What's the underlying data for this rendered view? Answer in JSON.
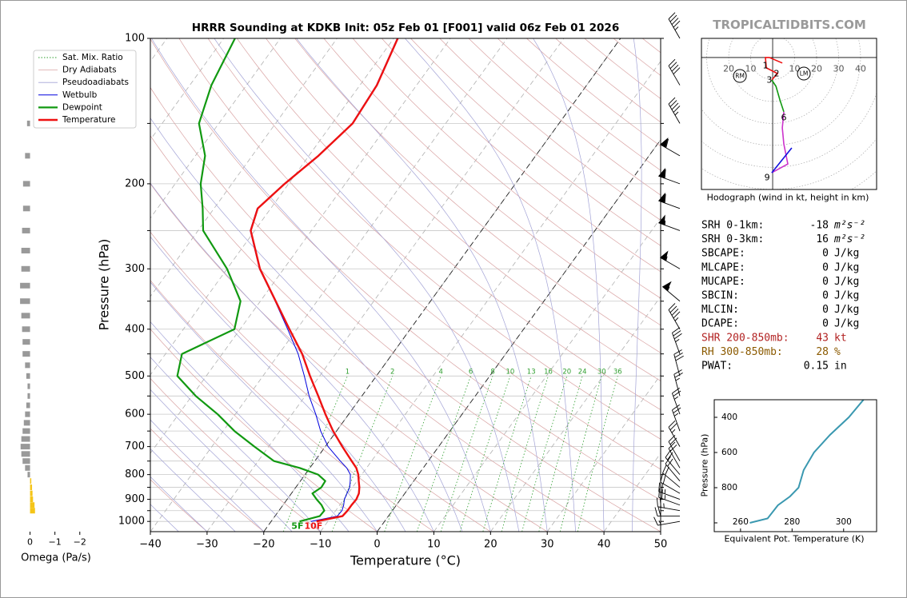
{
  "site": "TROPICALTIDBITS.COM",
  "chart_data": [
    {
      "type": "skewt",
      "title": "HRRR Sounding at KDKB Init: 05z Feb 01 [F001] valid 06z Feb 01 2026",
      "xlabel": "Temperature (°C)",
      "ylabel": "Pressure (hPa)",
      "ylog": true,
      "grid": true,
      "legend": "upper left",
      "xlim": [
        -40,
        50
      ],
      "ylim": [
        1050,
        100
      ],
      "xticks": [
        {
          "value": -40,
          "label": "−40"
        },
        {
          "value": -30,
          "label": "−30"
        },
        {
          "value": -20,
          "label": "−20"
        },
        {
          "value": -10,
          "label": "−10"
        },
        0,
        10,
        20,
        30,
        40,
        50
      ],
      "yticks": [
        100,
        200,
        300,
        400,
        500,
        600,
        700,
        800,
        900,
        1000
      ],
      "yticks_minor": [
        150,
        250,
        350,
        450,
        550,
        650,
        750,
        850,
        950
      ],
      "dashed_isotherms": [
        -20,
        0
      ],
      "reference_lines": [
        {
          "name": "Sat. Mix. Ratio",
          "color": "#2e9e2e",
          "values": [
            1,
            2,
            4,
            6,
            8,
            10,
            13,
            16,
            20,
            24,
            30,
            36
          ]
        },
        {
          "name": "Dry Adiabats",
          "color": "#d9a3a3"
        },
        {
          "name": "Pseudoadiabats",
          "color": "#a3a3d6"
        }
      ],
      "pressure": [
        1000,
        975,
        950,
        925,
        900,
        875,
        850,
        825,
        800,
        775,
        750,
        700,
        650,
        600,
        550,
        500,
        450,
        400,
        350,
        300,
        250,
        225,
        200,
        175,
        150,
        125,
        100
      ],
      "series": [
        {
          "name": "Wetbulb",
          "color": "#0000dd",
          "values": [
            -13.0,
            -9.0,
            -8.9,
            -9.3,
            -9.9,
            -10.2,
            -10.5,
            -11.2,
            -12.0,
            -13.5,
            -15.5,
            -19.5,
            -22.8,
            -25.8,
            -29.3,
            -32.7,
            -36.6,
            -41.6,
            -47.4,
            -54.3,
            -60.8,
            -62.4,
            -60.8,
            -58.4,
            -56.5,
            -57.1,
            -59.4
          ]
        },
        {
          "name": "Dewpoint",
          "color": "#119911",
          "surface_label": "5F",
          "values": [
            -15.0,
            -12.1,
            -12.0,
            -13.2,
            -14.8,
            -16.3,
            -15.5,
            -15.6,
            -17.7,
            -21.8,
            -27.2,
            -32.5,
            -38.0,
            -43.1,
            -49.3,
            -55.1,
            -57.1,
            -51.0,
            -53.5,
            -60.0,
            -69.1,
            -72.0,
            -75.5,
            -78.3,
            -83.5,
            -86.2,
            -88.0
          ]
        },
        {
          "name": "Temperature",
          "color": "#ee1111",
          "surface_label": "10F",
          "values": [
            -12.0,
            -8.1,
            -7.9,
            -7.9,
            -7.8,
            -8.1,
            -8.8,
            -9.7,
            -10.6,
            -11.8,
            -13.5,
            -17.0,
            -20.6,
            -24.1,
            -27.7,
            -31.7,
            -35.9,
            -41.3,
            -47.3,
            -54.2,
            -60.7,
            -62.3,
            -60.7,
            -58.3,
            -56.4,
            -57.0,
            -59.3
          ]
        }
      ],
      "wind_speed": [
        15,
        20,
        25,
        25,
        25,
        20,
        20,
        20,
        20,
        20,
        20,
        25,
        25,
        25,
        25,
        30,
        35,
        45,
        55,
        55,
        55,
        60,
        60,
        60,
        45,
        40,
        45
      ],
      "wind_direction": [
        260,
        270,
        280,
        290,
        290,
        300,
        310,
        320,
        320,
        330,
        330,
        330,
        340,
        340,
        345,
        345,
        340,
        330,
        310,
        300,
        290,
        290,
        290,
        300,
        330,
        330,
        330
      ]
    },
    {
      "type": "bar",
      "xlabel": "Omega (Pa/s)",
      "xlim": [
        0.5,
        -2.2
      ],
      "xticks": [
        0,
        {
          "value": -1,
          "label": "−1"
        },
        {
          "value": -2,
          "label": "−2"
        }
      ],
      "color": "#999999",
      "negative_color": "#f5c518",
      "pressure": [
        150,
        175,
        200,
        225,
        250,
        275,
        300,
        325,
        350,
        375,
        400,
        425,
        450,
        475,
        500,
        525,
        550,
        575,
        600,
        625,
        650,
        675,
        700,
        725,
        750,
        775,
        800,
        825,
        850,
        875,
        900,
        925,
        950
      ],
      "values": [
        0.12,
        0.2,
        0.28,
        0.28,
        0.32,
        0.35,
        0.35,
        0.4,
        0.4,
        0.35,
        0.32,
        0.3,
        0.3,
        0.2,
        0.15,
        0.1,
        0.1,
        0.15,
        0.2,
        0.25,
        0.3,
        0.35,
        0.38,
        0.35,
        0.3,
        0.2,
        0.1,
        -0.05,
        -0.08,
        -0.1,
        -0.12,
        -0.18,
        -0.2
      ]
    },
    {
      "type": "hodograph",
      "caption": "Hodograph (wind in kt, height in km)",
      "xlim": [
        -32.4,
        47.3
      ],
      "ylim": [
        -60,
        8.7
      ],
      "xticks": [
        {
          "value": -20,
          "label": "20"
        },
        {
          "value": -10,
          "label": "10"
        },
        10,
        20,
        30,
        40
      ],
      "series": [
        {
          "color": "#ee1111",
          "u": [
            4.4,
            -1.5,
            -3.3,
            -2.9,
            2.2,
            -0.4
          ],
          "v": [
            -2.5,
            0,
            0,
            -4.7,
            -7.3,
            -10.2
          ]
        },
        {
          "color": "#119911",
          "u": [
            -0.4,
            1.5,
            3.3,
            5.1
          ],
          "v": [
            -10.2,
            -13.1,
            -19.3,
            -24.7
          ]
        },
        {
          "color": "#cc33cc",
          "u": [
            5.1,
            4.4,
            5.1,
            6.9,
            -0.4
          ],
          "v": [
            -24.7,
            -32,
            -39.3,
            -48.4,
            -52.4
          ]
        },
        {
          "color": "#1111dd",
          "u": [
            -0.4,
            8.7
          ],
          "v": [
            -52.4,
            -41.1
          ]
        }
      ],
      "height_labels": [
        {
          "text": "1",
          "u": -3.3,
          "v": -3.6
        },
        {
          "text": "2",
          "u": 1.8,
          "v": -7.3
        },
        {
          "text": "3",
          "u": -1.5,
          "v": -10.2
        },
        {
          "text": "6",
          "u": 5.1,
          "v": -27.3
        },
        {
          "text": "9",
          "u": -2.5,
          "v": -54.5
        }
      ],
      "storm_motion": [
        {
          "label": "RM",
          "u": -14.9,
          "v": -8.4
        },
        {
          "label": "LM",
          "u": 14.2,
          "v": -7.3
        }
      ]
    },
    {
      "type": "line",
      "xlabel": "Equivalent Pot. Temperature (K)",
      "ylabel": "Pressure (hPa)",
      "xlim": [
        249.8,
        312.8
      ],
      "ylim": [
        1050,
        300
      ],
      "xticks": [
        260,
        280,
        300
      ],
      "yticks": [
        400,
        600,
        800
      ],
      "yticks_minor": [
        1000
      ],
      "color": "#3a98b0",
      "pressure": [
        1000,
        975,
        900,
        850,
        800,
        750,
        700,
        600,
        500,
        400,
        300
      ],
      "values": [
        263.6,
        270.5,
        274.5,
        279.2,
        282.5,
        283.5,
        284.5,
        288.5,
        294.7,
        302,
        307.7
      ]
    }
  ],
  "stats": [
    {
      "label": "SRH 0-1km:",
      "value": -18,
      "unit": "m²s⁻²"
    },
    {
      "label": "SRH 0-3km:",
      "value": 16,
      "unit": "m²s⁻²"
    },
    {
      "label": "SBCAPE:",
      "value": 0,
      "unit": "J/kg"
    },
    {
      "label": "MLCAPE:",
      "value": 0,
      "unit": "J/kg"
    },
    {
      "label": "MUCAPE:",
      "value": 0,
      "unit": "J/kg"
    },
    {
      "label": "SBCIN:",
      "value": 0,
      "unit": "J/kg"
    },
    {
      "label": "MLCIN:",
      "value": 0,
      "unit": "J/kg"
    },
    {
      "label": "DCAPE:",
      "value": 0,
      "unit": "J/kg"
    },
    {
      "label": "SHR 200-850mb:",
      "value": 43,
      "unit": "kt",
      "color": "#b22222"
    },
    {
      "label": "RH 300-850mb:",
      "value": 28,
      "unit": "%",
      "color": "#8b5a00"
    },
    {
      "label": "PWAT:",
      "value": 0.15,
      "unit": "in"
    }
  ]
}
